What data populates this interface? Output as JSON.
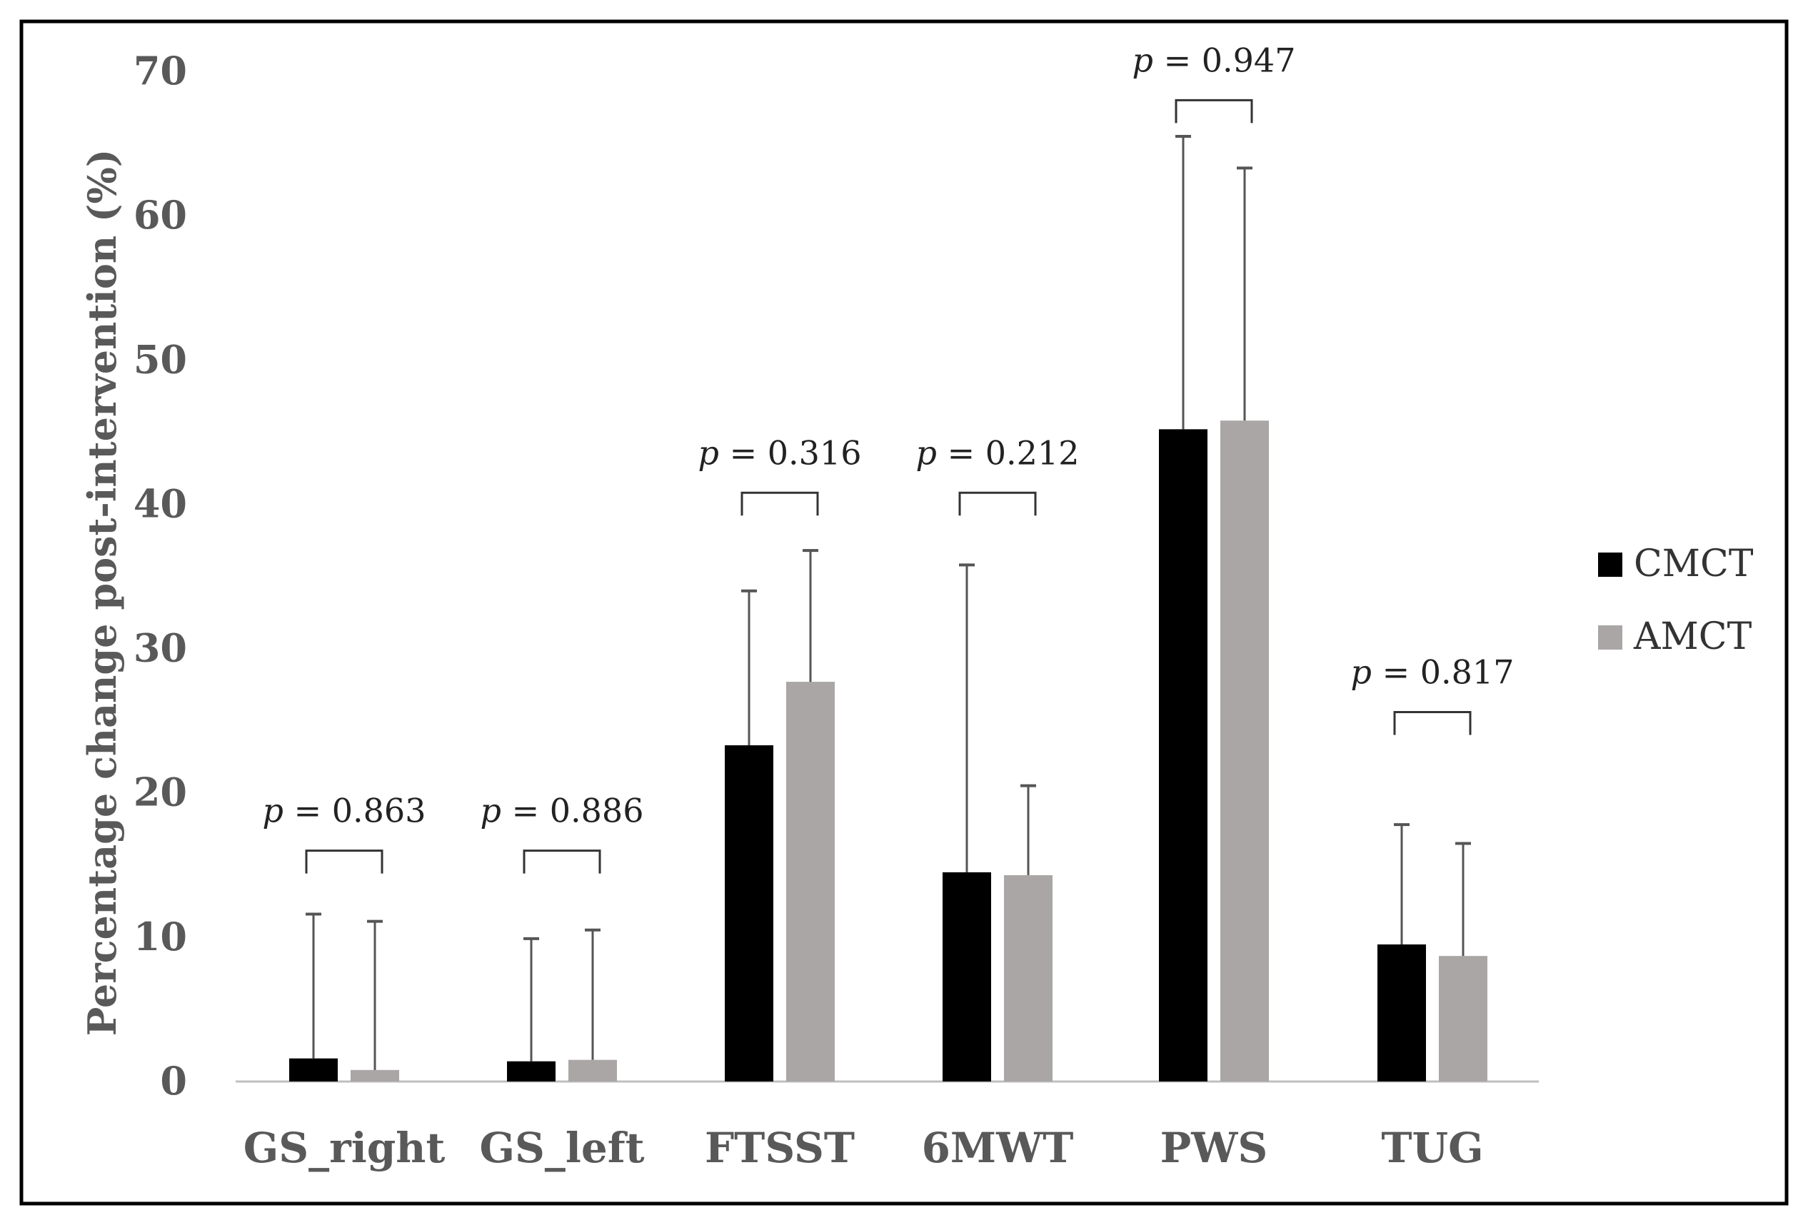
{
  "chart_data": {
    "type": "bar",
    "title": "",
    "xlabel": "",
    "ylabel": "Percentage change post-intervention (%)",
    "ylim": [
      0,
      70
    ],
    "yticks": [
      0,
      10,
      20,
      30,
      40,
      50,
      60,
      70
    ],
    "grid": false,
    "legend_position": "right",
    "categories": [
      "GS_right",
      "GS_left",
      "FTSST",
      "6MWT",
      "PWS",
      "TUG"
    ],
    "series": [
      {
        "name": "CMCT",
        "color": "#000000",
        "values": [
          1.6,
          1.4,
          23.3,
          14.5,
          45.2,
          9.5
        ],
        "error_upper": [
          11.6,
          9.9,
          34.0,
          35.8,
          65.5,
          17.8
        ]
      },
      {
        "name": "AMCT",
        "color": "#aaa6a5",
        "values": [
          0.8,
          1.5,
          27.7,
          14.3,
          45.8,
          8.7
        ],
        "error_upper": [
          11.1,
          10.5,
          36.8,
          20.5,
          63.3,
          16.5
        ]
      }
    ],
    "annotations": [
      {
        "category": "GS_right",
        "p_label": "p",
        "p_value": "= 0.863",
        "level": 16.0
      },
      {
        "category": "GS_left",
        "p_label": "p",
        "p_value": "= 0.886",
        "level": 16.0
      },
      {
        "category": "FTSST",
        "p_label": "p",
        "p_value": "= 0.316",
        "level": 40.8
      },
      {
        "category": "6MWT",
        "p_label": "p",
        "p_value": "= 0.212",
        "level": 40.8
      },
      {
        "category": "PWS",
        "p_label": "p",
        "p_value": "= 0.947",
        "level": 68.0
      },
      {
        "category": "TUG",
        "p_label": "p",
        "p_value": "= 0.817",
        "level": 25.6
      }
    ]
  }
}
